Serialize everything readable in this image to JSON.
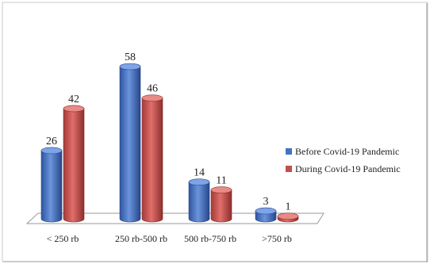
{
  "chart_data": {
    "type": "bar",
    "style": "3d-cylinder",
    "categories": [
      "< 250 rb",
      "250 rb-500 rb",
      "500 rb-750 rb",
      ">750 rb"
    ],
    "series": [
      {
        "name": "Before Covid-19 Pandemic",
        "values": [
          26,
          58,
          14,
          3
        ],
        "color": "#4472c4"
      },
      {
        "name": "During Covid-19 Pandemic",
        "values": [
          42,
          46,
          11,
          1
        ],
        "color": "#c0504d"
      }
    ],
    "ylim": [
      0,
      60
    ],
    "grid": false,
    "legend_position": "right",
    "data_labels": true
  }
}
